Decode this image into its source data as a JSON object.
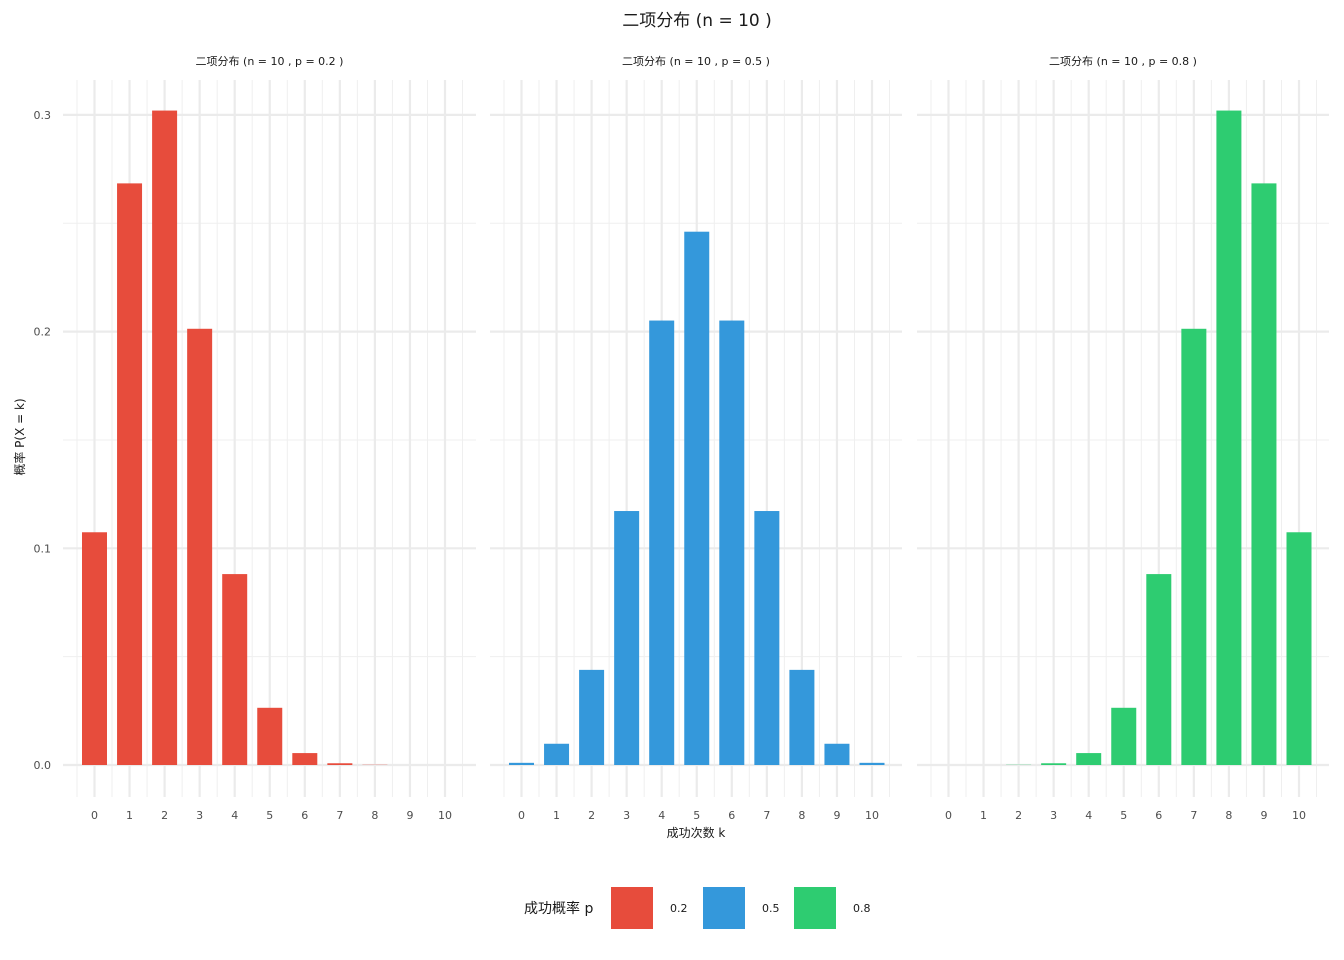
{
  "chart_data": {
    "type": "bar",
    "title": "二项分布 (n = 10 )",
    "xlabel": "成功次数 k",
    "ylabel": "概率 P(X = k)",
    "ylim": [
      0,
      0.315
    ],
    "y_ticks": [
      "0.0",
      "0.1",
      "0.2",
      "0.3"
    ],
    "grid": true,
    "categories": [
      "0",
      "1",
      "2",
      "3",
      "4",
      "5",
      "6",
      "7",
      "8",
      "9",
      "10"
    ],
    "panels": [
      {
        "title": "二项分布 (n = 10 , p = 0.2 )",
        "p": "0.2",
        "color": "#E74C3C",
        "values": [
          0.1074,
          0.2684,
          0.302,
          0.2013,
          0.0881,
          0.0264,
          0.0055,
          0.0008,
          0.0001,
          0.0,
          0.0
        ]
      },
      {
        "title": "二项分布 (n = 10 , p = 0.5 )",
        "p": "0.5",
        "color": "#3498DB",
        "values": [
          0.001,
          0.0098,
          0.0439,
          0.1172,
          0.2051,
          0.2461,
          0.2051,
          0.1172,
          0.0439,
          0.0098,
          0.001
        ]
      },
      {
        "title": "二项分布 (n = 10 , p = 0.8 )",
        "p": "0.8",
        "color": "#2ECC71",
        "values": [
          0.0,
          0.0,
          0.0001,
          0.0008,
          0.0055,
          0.0264,
          0.0881,
          0.2013,
          0.302,
          0.2684,
          0.1074
        ]
      }
    ],
    "legend": {
      "title": "成功概率 p",
      "position": "bottom",
      "items": [
        {
          "label": "0.2",
          "color": "#E74C3C"
        },
        {
          "label": "0.5",
          "color": "#3498DB"
        },
        {
          "label": "0.8",
          "color": "#2ECC71"
        }
      ]
    }
  }
}
